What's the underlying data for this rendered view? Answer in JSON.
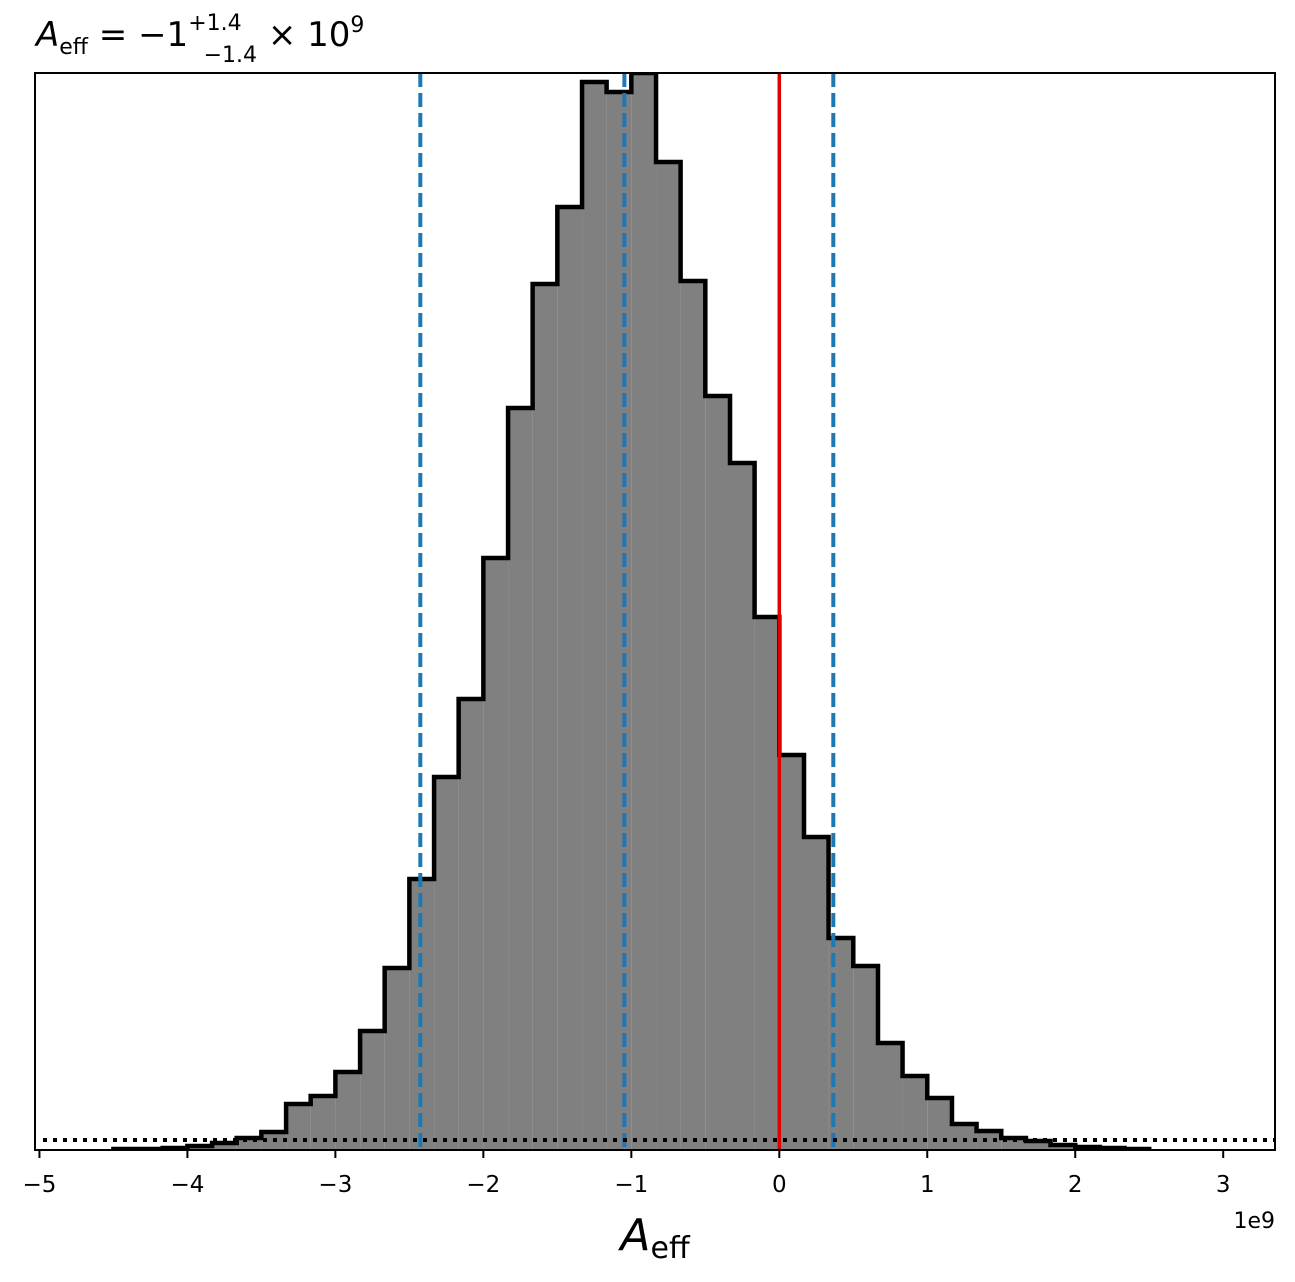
{
  "chart_data": {
    "type": "histogram",
    "title": {
      "symbol": "A",
      "subscript": "eff",
      "equals": " = −1",
      "sup": "+1.4",
      "sub": "−1.4",
      "times": " × 10",
      "exp": "9"
    },
    "x_label": {
      "symbol": "A",
      "subscript": "eff"
    },
    "x_offset_label": "1e9",
    "bins": [
      -4.5,
      -4.333,
      -4.167,
      -4,
      -3.833,
      -3.667,
      -3.5,
      -3.333,
      -3.167,
      -3,
      -2.833,
      -2.667,
      -2.5,
      -2.333,
      -2.167,
      -2,
      -1.833,
      -1.667,
      -1.5,
      -1.333,
      -1.167,
      -1,
      -0.833,
      -0.667,
      -0.5,
      -0.333,
      -0.167,
      0,
      0.167,
      0.333,
      0.5,
      0.667,
      0.833,
      1,
      1.167,
      1.333,
      1.5,
      1.667,
      1.833,
      2,
      2.167,
      2.333,
      2.5
    ],
    "values": [
      1,
      1,
      2,
      4,
      7,
      12,
      18,
      46,
      54,
      78,
      119,
      182,
      271,
      373,
      451,
      592,
      742,
      866,
      943,
      1068,
      1058,
      1077,
      988,
      869,
      754,
      687,
      533,
      395,
      313,
      212,
      184,
      107,
      74,
      52,
      26,
      19,
      12,
      9,
      5,
      3,
      2,
      1
    ],
    "color": "#808080",
    "edge_color": "#000000",
    "xlim": [
      -5.03,
      3.35
    ],
    "ylim": [
      0,
      1077
    ],
    "xticks": [
      {
        "value": -5,
        "label": "−5"
      },
      {
        "value": -4,
        "label": "−4"
      },
      {
        "value": -3,
        "label": "−3"
      },
      {
        "value": -2,
        "label": "−2"
      },
      {
        "value": -1,
        "label": "−1"
      },
      0,
      1,
      2,
      3
    ],
    "quantile_lines": {
      "values": [
        -2.426,
        -1.047,
        0.365
      ],
      "color": "#1f77b4"
    },
    "truth_line": {
      "value": 0,
      "color": "#e00000"
    },
    "floor_line": {
      "value": 10,
      "color": "#000000"
    }
  }
}
